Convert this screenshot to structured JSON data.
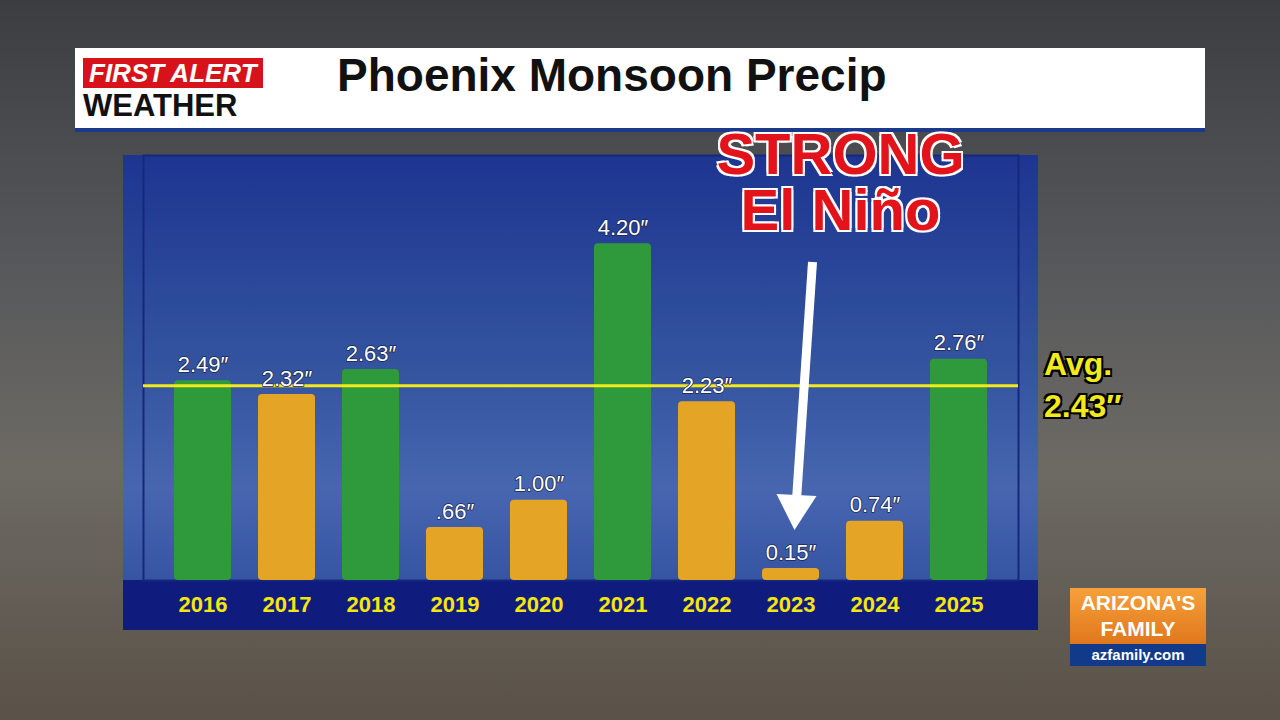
{
  "chart_data": {
    "type": "bar",
    "title": "Phoenix Monsoon Precip",
    "categories": [
      "2016",
      "2017",
      "2018",
      "2019",
      "2020",
      "2021",
      "2022",
      "2023",
      "2024",
      "2025"
    ],
    "values": [
      2.49,
      2.32,
      2.63,
      0.66,
      1.0,
      4.2,
      2.23,
      0.15,
      0.74,
      2.76
    ],
    "value_labels": [
      "2.49″",
      "2.32″",
      "2.63″",
      ".66″",
      "1.00″",
      "4.20″",
      "2.23″",
      "0.15″",
      "0.74″",
      "2.76″"
    ],
    "colors": [
      "#2f9a3c",
      "#e4a526",
      "#2f9a3c",
      "#e4a526",
      "#e4a526",
      "#2f9a3c",
      "#e4a526",
      "#e4a526",
      "#e4a526",
      "#2f9a3c"
    ],
    "ylim": [
      0,
      5.3
    ],
    "yticks": [],
    "grid": false,
    "data_labels": true,
    "tick_labels": "x",
    "average": {
      "value": 2.43,
      "label": [
        "Avg.",
        "2.43″"
      ],
      "color": "#f3ea1c"
    },
    "annotations": [
      {
        "text": [
          "STRONG",
          "El Niño"
        ],
        "category": "2023",
        "color": "#e3131b"
      }
    ]
  },
  "branding": {
    "logo": [
      "FIRST ALERT",
      "WEATHER"
    ],
    "station": [
      "ARIZONA'S",
      "FAMILY"
    ],
    "url": "azfamily.com"
  }
}
